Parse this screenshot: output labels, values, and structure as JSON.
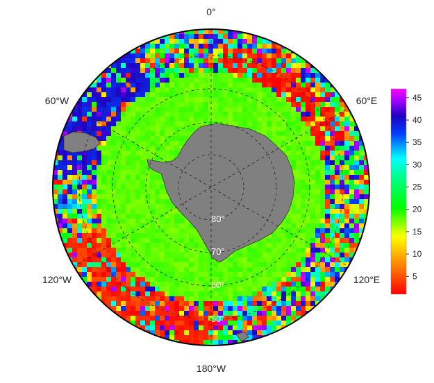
{
  "map": {
    "projection": "south-polar-stereographic",
    "lon_labels": {
      "top": "0°",
      "upper_right": "60°E",
      "lower_right": "120°E",
      "bottom": "180°W",
      "lower_left": "120°W",
      "upper_left": "60°W"
    },
    "lat_labels": [
      "80°",
      "70°",
      "60°",
      "50°"
    ],
    "land_color": "#808080",
    "grid_line_style": "dashed"
  },
  "colorbar": {
    "ticks": [
      "5",
      "10",
      "15",
      "20",
      "25",
      "30",
      "35",
      "40",
      "45"
    ],
    "min": 1,
    "max": 47,
    "colors": [
      "#ff0000",
      "#ff8000",
      "#ffff00",
      "#00ff00",
      "#00ffff",
      "#0000ff",
      "#ff00ff"
    ]
  }
}
